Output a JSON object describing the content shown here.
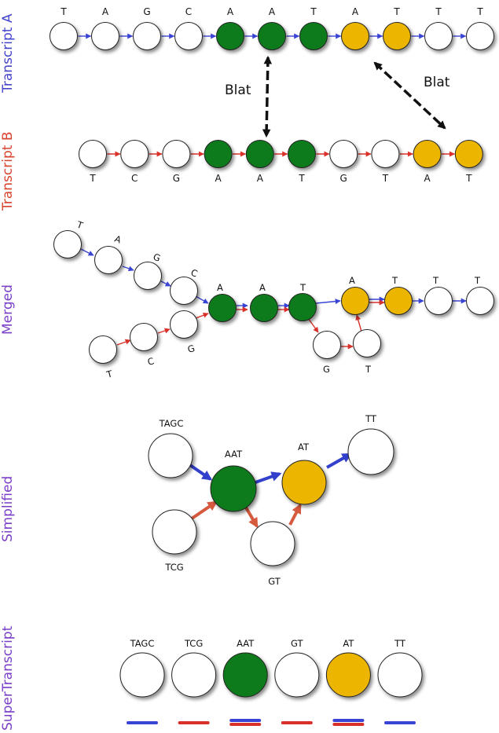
{
  "colors": {
    "blue_edge": "#3a44d4",
    "red_edge": "#d9302a",
    "simp_blue": "#3340cc",
    "simp_red": "#d65a3e",
    "green": "#117a1b",
    "yellow": "#ecb500",
    "white": "#ffffff",
    "outline": "#222222",
    "label_a": "#4545cc",
    "label_b": "#d9442e",
    "label_purple": "#7a3fc9"
  },
  "labels": {
    "transcript_a": "Transcript A",
    "transcript_b": "Transcript B",
    "merged": "Merged",
    "simplified": "Simplified",
    "supertranscript": "SuperTranscript",
    "blat_left": "Blat",
    "blat_right": "Blat"
  },
  "transcript_a": {
    "letters": [
      "T",
      "A",
      "G",
      "C",
      "A",
      "A",
      "T",
      "A",
      "T",
      "T",
      "T"
    ],
    "fills": [
      "white",
      "white",
      "white",
      "white",
      "green",
      "green",
      "green",
      "yellow",
      "yellow",
      "white",
      "white"
    ]
  },
  "transcript_b": {
    "letters": [
      "T",
      "C",
      "G",
      "A",
      "A",
      "T",
      "G",
      "T",
      "A",
      "T"
    ],
    "fills": [
      "white",
      "white",
      "white",
      "green",
      "green",
      "green",
      "white",
      "white",
      "yellow",
      "yellow"
    ]
  },
  "merged": {
    "letters": {
      "a_t": "T",
      "a_a": "A",
      "a_g": "G",
      "a_c": "C",
      "b_t": "T",
      "b_c": "C",
      "b_g": "G",
      "m_a1": "A",
      "m_a2": "A",
      "m_t": "T",
      "y_a": "A",
      "y_t": "T",
      "w_t1": "T",
      "w_t2": "T",
      "b_g2": "G",
      "b_t2": "T"
    }
  },
  "simplified": {
    "nodes": {
      "tagc": "TAGC",
      "tcg": "TCG",
      "aat": "AAT",
      "gt": "GT",
      "at": "AT",
      "tt": "TT"
    }
  },
  "supertranscript": {
    "nodes": [
      "TAGC",
      "TCG",
      "AAT",
      "GT",
      "AT",
      "TT"
    ],
    "fills": [
      "white",
      "white",
      "green",
      "white",
      "yellow",
      "white"
    ],
    "bars": [
      [
        "blue"
      ],
      [
        "red"
      ],
      [
        "blue",
        "red"
      ],
      [
        "red"
      ],
      [
        "blue",
        "red"
      ],
      [
        "blue"
      ]
    ]
  }
}
